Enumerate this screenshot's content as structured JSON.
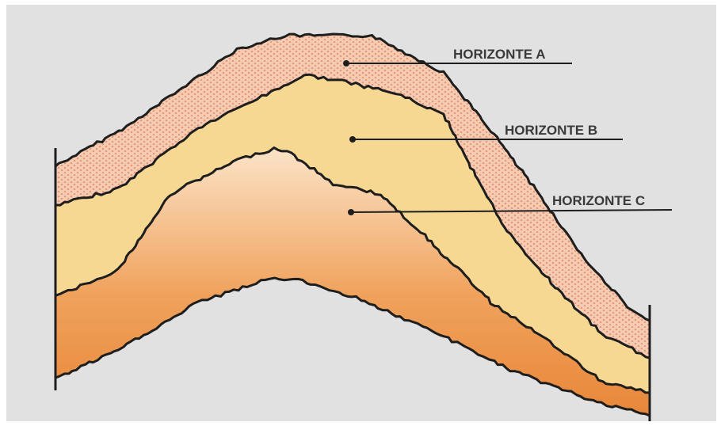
{
  "labels": [
    "HORIZONTE A",
    "HORIZONTE B",
    "HORIZONTE C"
  ]
}
